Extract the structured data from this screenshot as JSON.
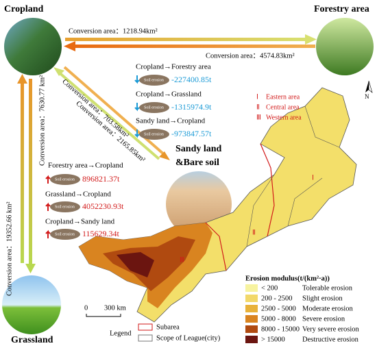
{
  "nodes": [
    {
      "id": "cropland",
      "label": "Cropland"
    },
    {
      "id": "forestry",
      "label": "Forestry area"
    },
    {
      "id": "grassland",
      "label": "Grassland"
    },
    {
      "id": "sandy",
      "label_lines": [
        "Sandy land",
        "&Bare soil"
      ]
    }
  ],
  "conversions": [
    "Conversion area：1218.94km²",
    "Conversion area：4574.83km²",
    "Conversion area：703.58km²",
    "Conversion area：2165.85km²",
    "Conversion area：7630.77 km²",
    "Conversion area：19352.66 km²"
  ],
  "soil_erosion": {
    "icon_label": "Soil erosion",
    "decrease": [
      {
        "flow": "Cropland→Forestry area",
        "change": "-227400.85t"
      },
      {
        "flow": "Cropland→Grassland",
        "change": "-1315974.9t"
      },
      {
        "flow": "Sandy land→Cropland",
        "change": "-973847.57t"
      }
    ],
    "increase": [
      {
        "flow": "Forestry area→Cropland",
        "change": "896821.37t"
      },
      {
        "flow": "Grassland→Cropland",
        "change": "4052230.93t"
      },
      {
        "flow": "Cropland→Sandy land",
        "change": "115629.34t"
      }
    ]
  },
  "map": {
    "area_labels": [
      "Ⅰ",
      "Ⅱ",
      "Ⅲ"
    ],
    "area_legend": [
      {
        "numeral": "Ⅰ",
        "name": "Eastern area"
      },
      {
        "numeral": "Ⅱ",
        "name": "Central area"
      },
      {
        "numeral": "Ⅲ",
        "name": "Western area"
      }
    ],
    "north": "N",
    "scale": [
      "0",
      "300 km"
    ]
  },
  "legend": {
    "title": "Legend",
    "items": [
      "Subarea",
      "Scope of League(city)"
    ]
  },
  "erosion_legend": {
    "title": "Erosion modulus(t/(km²·a))",
    "classes": [
      {
        "range": "< 200",
        "label": "Tolerable erosion"
      },
      {
        "range": "200 - 2500",
        "label": "Slight erosion"
      },
      {
        "range": "2500 - 5000",
        "label": "Moderate erosion"
      },
      {
        "range": "5000 - 8000",
        "label": "Severe erosion"
      },
      {
        "range": "8000 - 15000",
        "label": "Very severe erosion"
      },
      {
        "range": "> 15000",
        "label": "Destructive erosion"
      }
    ]
  }
}
